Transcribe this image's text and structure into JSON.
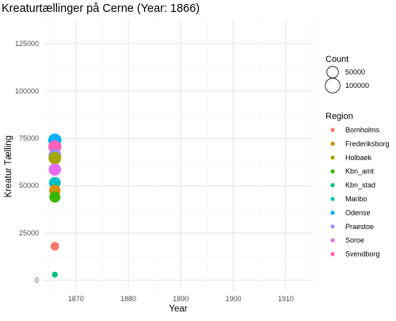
{
  "chart_data": {
    "type": "scatter",
    "title": "Kreaturtællinger på Cerne (Year: 1866)",
    "xlabel": "Year",
    "ylabel": "Kreatur Tælling",
    "xlim": [
      1864,
      1915
    ],
    "ylim": [
      -6000,
      138000
    ],
    "x_ticks": [
      1870,
      1880,
      1890,
      1900,
      1910
    ],
    "y_ticks": [
      0,
      25000,
      50000,
      75000,
      100000,
      125000
    ],
    "grid": true,
    "legend_position": "right",
    "size_legend": {
      "title": "Count",
      "entries": [
        {
          "label": "50000",
          "value": 50000
        },
        {
          "label": "100000",
          "value": 100000
        }
      ]
    },
    "color_legend": {
      "title": "Region"
    },
    "series": [
      {
        "name": "Bornholms",
        "color": "#F8766D",
        "points": [
          {
            "x": 1866,
            "y": 18000
          }
        ]
      },
      {
        "name": "Frederiksborg",
        "color": "#D89000",
        "points": [
          {
            "x": 1866,
            "y": 47500
          }
        ]
      },
      {
        "name": "Holbaek",
        "color": "#A3A500",
        "points": [
          {
            "x": 1866,
            "y": 64500
          }
        ]
      },
      {
        "name": "Kbn_amt",
        "color": "#39B600",
        "points": [
          {
            "x": 1866,
            "y": 44000
          }
        ]
      },
      {
        "name": "Kbn_stad",
        "color": "#00BF7D",
        "points": [
          {
            "x": 1866,
            "y": 3000
          }
        ]
      },
      {
        "name": "Maribo",
        "color": "#00BFC4",
        "points": [
          {
            "x": 1866,
            "y": 51500
          }
        ]
      },
      {
        "name": "Odense",
        "color": "#00B0F6",
        "points": [
          {
            "x": 1866,
            "y": 74000
          }
        ]
      },
      {
        "name": "Praestoe",
        "color": "#9590FF",
        "points": [
          {
            "x": 1866,
            "y": 66000
          }
        ]
      },
      {
        "name": "Soroe",
        "color": "#E76BF3",
        "points": [
          {
            "x": 1866,
            "y": 58500
          }
        ]
      },
      {
        "name": "Svendborg",
        "color": "#FF62BC",
        "points": [
          {
            "x": 1866,
            "y": 70500
          }
        ]
      }
    ]
  }
}
